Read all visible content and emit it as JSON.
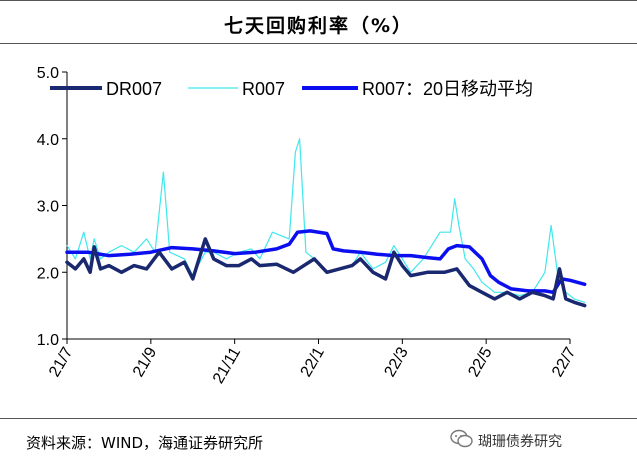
{
  "title": "七天回购利率（%）",
  "source": "资料来源：WIND，海通证券研究所",
  "watermark": "瑚珊债券研究",
  "watermark_icon": "wechat-icon",
  "chart_data": {
    "type": "line",
    "title": "七天回购利率（%）",
    "xlabel": "",
    "ylabel": "",
    "ylim": [
      1.0,
      5.0
    ],
    "yticks": [
      "1.0",
      "2.0",
      "3.0",
      "4.0",
      "5.0"
    ],
    "xlim": [
      0,
      12
    ],
    "x_tick_labels": [
      "21/7",
      "21/9",
      "21/11",
      "22/1",
      "22/3",
      "22/5",
      "22/7"
    ],
    "grid": false,
    "legend_position": "top",
    "series": [
      {
        "name": "DR007",
        "color": "#1a2870",
        "style": "thick",
        "points": [
          [
            0,
            2.15
          ],
          [
            0.2,
            2.05
          ],
          [
            0.4,
            2.2
          ],
          [
            0.55,
            2.0
          ],
          [
            0.65,
            2.38
          ],
          [
            0.8,
            2.05
          ],
          [
            1.0,
            2.1
          ],
          [
            1.3,
            2.0
          ],
          [
            1.6,
            2.1
          ],
          [
            1.9,
            2.05
          ],
          [
            2.2,
            2.3
          ],
          [
            2.5,
            2.05
          ],
          [
            2.8,
            2.15
          ],
          [
            3.0,
            1.9
          ],
          [
            3.3,
            2.5
          ],
          [
            3.5,
            2.2
          ],
          [
            3.8,
            2.1
          ],
          [
            4.1,
            2.1
          ],
          [
            4.4,
            2.2
          ],
          [
            4.6,
            2.1
          ],
          [
            5.0,
            2.12
          ],
          [
            5.4,
            2.0
          ],
          [
            5.9,
            2.2
          ],
          [
            6.2,
            2.0
          ],
          [
            6.5,
            2.05
          ],
          [
            6.8,
            2.1
          ],
          [
            7.0,
            2.2
          ],
          [
            7.3,
            2.0
          ],
          [
            7.6,
            1.9
          ],
          [
            7.8,
            2.3
          ],
          [
            8.0,
            2.1
          ],
          [
            8.2,
            1.95
          ],
          [
            8.6,
            2.0
          ],
          [
            9.0,
            2.0
          ],
          [
            9.3,
            2.05
          ],
          [
            9.6,
            1.8
          ],
          [
            9.9,
            1.7
          ],
          [
            10.2,
            1.6
          ],
          [
            10.5,
            1.7
          ],
          [
            10.8,
            1.6
          ],
          [
            11.1,
            1.7
          ],
          [
            11.4,
            1.65
          ],
          [
            11.6,
            1.6
          ],
          [
            11.75,
            2.05
          ],
          [
            11.9,
            1.6
          ],
          [
            12.1,
            1.55
          ],
          [
            12.35,
            1.5
          ]
        ]
      },
      {
        "name": "R007",
        "color": "#3ee8ec",
        "style": "thin",
        "points": [
          [
            0,
            2.4
          ],
          [
            0.2,
            2.2
          ],
          [
            0.4,
            2.6
          ],
          [
            0.55,
            2.2
          ],
          [
            0.65,
            2.5
          ],
          [
            0.8,
            2.2
          ],
          [
            1.0,
            2.3
          ],
          [
            1.3,
            2.4
          ],
          [
            1.6,
            2.3
          ],
          [
            1.9,
            2.5
          ],
          [
            2.1,
            2.3
          ],
          [
            2.3,
            3.5
          ],
          [
            2.45,
            2.3
          ],
          [
            2.8,
            2.2
          ],
          [
            3.0,
            1.95
          ],
          [
            3.3,
            2.3
          ],
          [
            3.5,
            2.3
          ],
          [
            3.8,
            2.2
          ],
          [
            4.1,
            2.3
          ],
          [
            4.4,
            2.35
          ],
          [
            4.6,
            2.2
          ],
          [
            4.9,
            2.6
          ],
          [
            5.3,
            2.5
          ],
          [
            5.45,
            3.8
          ],
          [
            5.55,
            4.0
          ],
          [
            5.7,
            2.3
          ],
          [
            5.9,
            2.2
          ],
          [
            6.2,
            2.0
          ],
          [
            6.5,
            2.05
          ],
          [
            6.8,
            2.1
          ],
          [
            7.0,
            2.3
          ],
          [
            7.3,
            2.05
          ],
          [
            7.6,
            2.15
          ],
          [
            7.8,
            2.4
          ],
          [
            8.0,
            2.2
          ],
          [
            8.2,
            2.0
          ],
          [
            8.5,
            2.2
          ],
          [
            8.9,
            2.6
          ],
          [
            9.15,
            2.6
          ],
          [
            9.25,
            3.1
          ],
          [
            9.35,
            2.7
          ],
          [
            9.5,
            2.2
          ],
          [
            9.7,
            2.05
          ],
          [
            9.9,
            1.85
          ],
          [
            10.2,
            1.7
          ],
          [
            10.5,
            1.7
          ],
          [
            10.8,
            1.65
          ],
          [
            11.1,
            1.7
          ],
          [
            11.4,
            2.0
          ],
          [
            11.55,
            2.7
          ],
          [
            11.7,
            2.0
          ],
          [
            11.9,
            1.7
          ],
          [
            12.1,
            1.6
          ],
          [
            12.35,
            1.55
          ]
        ]
      },
      {
        "name": "R007：20日移动平均",
        "color": "#0b0ff0",
        "style": "thick",
        "points": [
          [
            0,
            2.3
          ],
          [
            0.5,
            2.3
          ],
          [
            1.0,
            2.25
          ],
          [
            1.5,
            2.27
          ],
          [
            2.0,
            2.3
          ],
          [
            2.5,
            2.37
          ],
          [
            3.0,
            2.35
          ],
          [
            3.5,
            2.32
          ],
          [
            4.0,
            2.28
          ],
          [
            4.5,
            2.3
          ],
          [
            5.0,
            2.35
          ],
          [
            5.3,
            2.42
          ],
          [
            5.5,
            2.6
          ],
          [
            5.8,
            2.62
          ],
          [
            6.2,
            2.58
          ],
          [
            6.35,
            2.35
          ],
          [
            6.6,
            2.32
          ],
          [
            7.0,
            2.3
          ],
          [
            7.4,
            2.27
          ],
          [
            7.8,
            2.25
          ],
          [
            8.2,
            2.25
          ],
          [
            8.6,
            2.22
          ],
          [
            8.9,
            2.2
          ],
          [
            9.1,
            2.35
          ],
          [
            9.3,
            2.4
          ],
          [
            9.6,
            2.38
          ],
          [
            9.9,
            2.2
          ],
          [
            10.1,
            1.95
          ],
          [
            10.3,
            1.85
          ],
          [
            10.6,
            1.75
          ],
          [
            11.0,
            1.72
          ],
          [
            11.4,
            1.72
          ],
          [
            11.6,
            1.7
          ],
          [
            11.8,
            1.9
          ],
          [
            12.0,
            1.88
          ],
          [
            12.35,
            1.82
          ]
        ]
      }
    ]
  }
}
